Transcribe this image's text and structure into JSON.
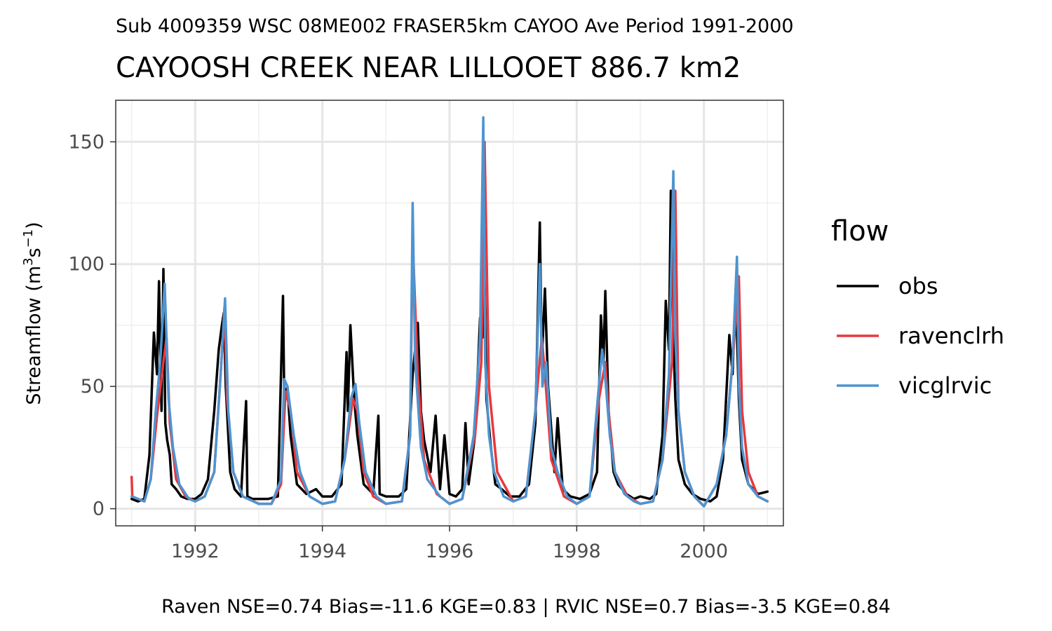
{
  "chart_data": {
    "type": "line",
    "subtitle_top": "Sub 4009359 WSC 08ME002 FRASER5km CAYOO Ave Period 1991-2000",
    "title": "CAYOOSH CREEK NEAR LILLOOET 886.7 km2",
    "ylabel_prefix": "Streamflow (m",
    "ylabel_sup1": "3",
    "ylabel_mid": "s",
    "ylabel_sup2": "−1",
    "ylabel_suffix": ")",
    "xlabel": "",
    "caption": "Raven NSE=0.74 Bias=-11.6 KGE=0.83 | RVIC NSE=0.7 Bias=-3.5 KGE=0.84",
    "legend_title": "flow",
    "legend_position": "right",
    "grid": true,
    "x_ticks": [
      "1992",
      "1994",
      "1996",
      "1998",
      "2000"
    ],
    "y_ticks": [
      "0",
      "50",
      "100",
      "150"
    ],
    "xlim": [
      1990.75,
      2001.25
    ],
    "ylim": [
      -7,
      167
    ],
    "series": [
      {
        "name": "obs",
        "color": "#000000",
        "x": [
          1991.0,
          1991.1,
          1991.2,
          1991.28,
          1991.35,
          1991.4,
          1991.43,
          1991.47,
          1991.5,
          1991.53,
          1991.56,
          1991.6,
          1991.63,
          1991.7,
          1991.78,
          1991.88,
          1992.0,
          1992.1,
          1992.2,
          1992.3,
          1992.37,
          1992.42,
          1992.45,
          1992.48,
          1992.55,
          1992.62,
          1992.72,
          1992.8,
          1992.82,
          1992.9,
          1993.0,
          1993.15,
          1993.3,
          1993.38,
          1993.4,
          1993.45,
          1993.5,
          1993.6,
          1993.75,
          1993.9,
          1994.0,
          1994.15,
          1994.3,
          1994.38,
          1994.4,
          1994.44,
          1994.5,
          1994.55,
          1994.65,
          1994.8,
          1994.88,
          1994.9,
          1995.0,
          1995.2,
          1995.32,
          1995.42,
          1995.5,
          1995.55,
          1995.6,
          1995.7,
          1995.78,
          1995.85,
          1995.92,
          1996.0,
          1996.1,
          1996.2,
          1996.25,
          1996.3,
          1996.4,
          1996.48,
          1996.52,
          1996.55,
          1996.58,
          1996.65,
          1996.72,
          1996.82,
          1996.95,
          1997.1,
          1997.25,
          1997.35,
          1997.42,
          1997.45,
          1997.5,
          1997.55,
          1997.65,
          1997.7,
          1997.78,
          1997.9,
          1998.05,
          1998.2,
          1998.32,
          1998.38,
          1998.42,
          1998.45,
          1998.5,
          1998.58,
          1998.65,
          1998.78,
          1998.9,
          1999.0,
          1999.15,
          1999.25,
          1999.35,
          1999.4,
          1999.45,
          1999.48,
          1999.52,
          1999.55,
          1999.6,
          1999.7,
          1999.82,
          1999.95,
          2000.1,
          2000.2,
          2000.3,
          2000.4,
          2000.45,
          2000.5,
          2000.55,
          2000.6,
          2000.7,
          2000.85,
          2001.0
        ],
        "y": [
          4,
          3,
          4,
          22,
          72,
          55,
          93,
          40,
          98,
          35,
          28,
          22,
          10,
          8,
          5,
          4,
          4,
          6,
          12,
          40,
          65,
          75,
          80,
          50,
          15,
          8,
          5,
          44,
          5,
          4,
          4,
          4,
          5,
          87,
          45,
          50,
          30,
          10,
          6,
          8,
          5,
          5,
          10,
          64,
          40,
          75,
          45,
          30,
          10,
          6,
          38,
          6,
          5,
          5,
          8,
          55,
          76,
          40,
          28,
          15,
          38,
          8,
          30,
          6,
          5,
          8,
          35,
          10,
          30,
          78,
          70,
          95,
          45,
          25,
          10,
          8,
          5,
          5,
          10,
          35,
          117,
          60,
          90,
          50,
          15,
          37,
          8,
          5,
          4,
          6,
          15,
          79,
          60,
          89,
          40,
          15,
          10,
          6,
          4,
          5,
          4,
          6,
          30,
          85,
          65,
          130,
          70,
          45,
          20,
          10,
          6,
          4,
          3,
          5,
          20,
          71,
          55,
          90,
          45,
          20,
          10,
          6,
          7
        ]
      },
      {
        "name": "ravenclrh",
        "color": "#e8383d",
        "x": [
          1991.0,
          1991.01,
          1991.1,
          1991.2,
          1991.3,
          1991.4,
          1991.5,
          1991.55,
          1991.6,
          1991.7,
          1991.85,
          1992.0,
          1992.15,
          1992.3,
          1992.4,
          1992.46,
          1992.5,
          1992.6,
          1992.75,
          1993.0,
          1993.2,
          1993.35,
          1993.42,
          1993.5,
          1993.6,
          1993.8,
          1994.0,
          1994.2,
          1994.35,
          1994.48,
          1994.55,
          1994.65,
          1994.8,
          1995.0,
          1995.25,
          1995.38,
          1995.42,
          1995.5,
          1995.6,
          1995.8,
          1996.0,
          1996.2,
          1996.4,
          1996.5,
          1996.55,
          1996.62,
          1996.75,
          1997.0,
          1997.2,
          1997.35,
          1997.45,
          1997.5,
          1997.6,
          1997.8,
          1998.0,
          1998.2,
          1998.35,
          1998.45,
          1998.5,
          1998.6,
          1998.8,
          1999.0,
          1999.2,
          1999.35,
          1999.5,
          1999.55,
          1999.6,
          1999.7,
          1999.85,
          2000.0,
          2000.2,
          2000.35,
          2000.45,
          2000.55,
          2000.6,
          2000.7,
          2000.85,
          2001.0
        ],
        "y": [
          13,
          5,
          4,
          3,
          12,
          38,
          60,
          70,
          35,
          12,
          5,
          3,
          5,
          15,
          55,
          82,
          45,
          15,
          5,
          2,
          2,
          10,
          48,
          40,
          15,
          5,
          2,
          3,
          20,
          45,
          40,
          15,
          5,
          2,
          3,
          30,
          110,
          55,
          20,
          6,
          2,
          4,
          30,
          60,
          150,
          50,
          15,
          3,
          5,
          40,
          70,
          55,
          20,
          5,
          2,
          5,
          45,
          60,
          40,
          15,
          5,
          2,
          3,
          20,
          60,
          130,
          40,
          15,
          5,
          1,
          10,
          30,
          60,
          95,
          40,
          15,
          5,
          3
        ]
      },
      {
        "name": "vicglrvic",
        "color": "#4e94d0",
        "x": [
          1991.0,
          1991.1,
          1991.2,
          1991.3,
          1991.38,
          1991.45,
          1991.52,
          1991.58,
          1991.65,
          1991.75,
          1991.9,
          1992.0,
          1992.15,
          1992.3,
          1992.4,
          1992.47,
          1992.52,
          1992.6,
          1992.75,
          1993.0,
          1993.2,
          1993.35,
          1993.4,
          1993.45,
          1993.55,
          1993.65,
          1993.8,
          1994.0,
          1994.2,
          1994.35,
          1994.45,
          1994.52,
          1994.58,
          1994.68,
          1994.85,
          1995.0,
          1995.25,
          1995.38,
          1995.42,
          1995.46,
          1995.55,
          1995.65,
          1995.85,
          1996.0,
          1996.2,
          1996.38,
          1996.48,
          1996.53,
          1996.56,
          1996.62,
          1996.7,
          1996.85,
          1997.0,
          1997.2,
          1997.35,
          1997.42,
          1997.46,
          1997.52,
          1997.6,
          1997.7,
          1997.85,
          1998.0,
          1998.2,
          1998.33,
          1998.4,
          1998.46,
          1998.52,
          1998.6,
          1998.75,
          1998.9,
          1999.0,
          1999.2,
          1999.35,
          1999.45,
          1999.52,
          1999.55,
          1999.6,
          1999.7,
          1999.85,
          2000.0,
          2000.2,
          2000.35,
          2000.45,
          2000.52,
          2000.55,
          2000.6,
          2000.7,
          2000.85,
          2001.0
        ],
        "y": [
          5,
          4,
          3,
          12,
          40,
          60,
          92,
          45,
          25,
          10,
          4,
          3,
          5,
          15,
          55,
          86,
          40,
          15,
          5,
          2,
          2,
          12,
          53,
          50,
          30,
          15,
          5,
          2,
          3,
          20,
          45,
          51,
          35,
          15,
          5,
          2,
          3,
          30,
          125,
          60,
          25,
          12,
          5,
          2,
          4,
          30,
          70,
          160,
          60,
          30,
          15,
          5,
          3,
          5,
          40,
          100,
          50,
          60,
          25,
          15,
          5,
          2,
          5,
          45,
          65,
          50,
          30,
          15,
          6,
          3,
          2,
          3,
          20,
          55,
          138,
          70,
          40,
          15,
          5,
          1,
          10,
          30,
          60,
          103,
          50,
          25,
          10,
          5,
          3
        ]
      }
    ]
  }
}
